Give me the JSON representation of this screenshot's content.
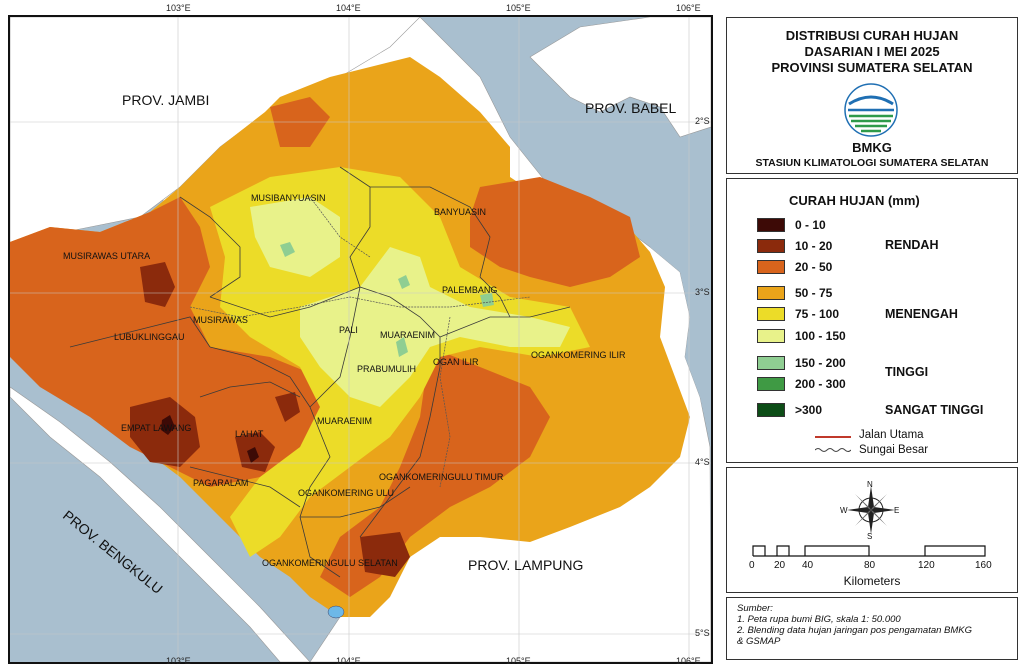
{
  "map": {
    "lon_ticks": [
      "103°E",
      "104°E",
      "105°E",
      "106°E"
    ],
    "lat_ticks": [
      "2°S",
      "3°S",
      "4°S",
      "5°S"
    ],
    "province_labels": {
      "jambi": "PROV. JAMBI",
      "babel": "PROV. BABEL",
      "bengkulu": "PROV. BENGKULU",
      "lampung": "PROV. LAMPUNG"
    },
    "regency_labels": {
      "musibanyuasin": "MUSIBANYUASIN",
      "banyuasin": "BANYUASIN",
      "musirawas_utara": "MUSIRAWAS UTARA",
      "palembang": "PALEMBANG",
      "musirawas": "MUSIRAWAS",
      "lubuklinggau": "LUBUKLINGGAU",
      "pali": "PALI",
      "muaraenim_top": "MUARAENIM",
      "ogan_ilir": "OGAN ILIR",
      "ogankomering_ilir": "OGANKOMERING ILIR",
      "prabumulih": "PRABUMULIH",
      "empat_lawang": "EMPAT LAWANG",
      "lahat": "LAHAT",
      "muaraenim": "MUARAENIM",
      "okut": "OGANKOMERINGULU TIMUR",
      "pagaralam": "PAGARALAM",
      "oku": "OGANKOMERING ULU",
      "okus": "OGANKOMERINGULU SELATAN"
    }
  },
  "title": {
    "line1": "DISTRIBUSI CURAH HUJAN",
    "line2": "DASARIAN I MEI 2025",
    "line3": "PROVINSI SUMATERA SELATAN",
    "logo_text": "BMKG",
    "agency": "STASIUN KLIMATOLOGI SUMATERA SELATAN"
  },
  "legend": {
    "heading": "CURAH HUJAN (mm)",
    "classes": [
      {
        "label": "0 - 10",
        "color": "#3d0a06"
      },
      {
        "label": "10 - 20",
        "color": "#8b2a0c"
      },
      {
        "label": "20 - 50",
        "color": "#d8641c"
      },
      {
        "label": "50 - 75",
        "color": "#eaa41a"
      },
      {
        "label": "75 - 100",
        "color": "#ecdc28"
      },
      {
        "label": "100 - 150",
        "color": "#e8f28a"
      },
      {
        "label": "150 - 200",
        "color": "#8fce92"
      },
      {
        "label": "200 - 300",
        "color": "#3f9a44"
      },
      {
        "label": ">300",
        "color": "#0d4d17"
      }
    ],
    "categories": {
      "rendah": "RENDAH",
      "menengah": "MENENGAH",
      "tinggi": "TINGGI",
      "sangat_tinggi": "SANGAT TINGGI"
    },
    "road_label": "Jalan Utama",
    "river_label": "Sungai Besar"
  },
  "scale": {
    "compass": {
      "n": "N",
      "s": "S",
      "e": "E",
      "w": "W"
    },
    "ticks": [
      "0",
      "20",
      "40",
      "80",
      "120",
      "160"
    ],
    "unit": "Kilometers"
  },
  "source": {
    "heading": "Sumber:",
    "line1": "1. Peta rupa bumi BIG, skala 1: 50.000",
    "line2": "2. Blending data hujan jaringan pos pengamatan BMKG",
    "line3": "& GSMAP"
  }
}
